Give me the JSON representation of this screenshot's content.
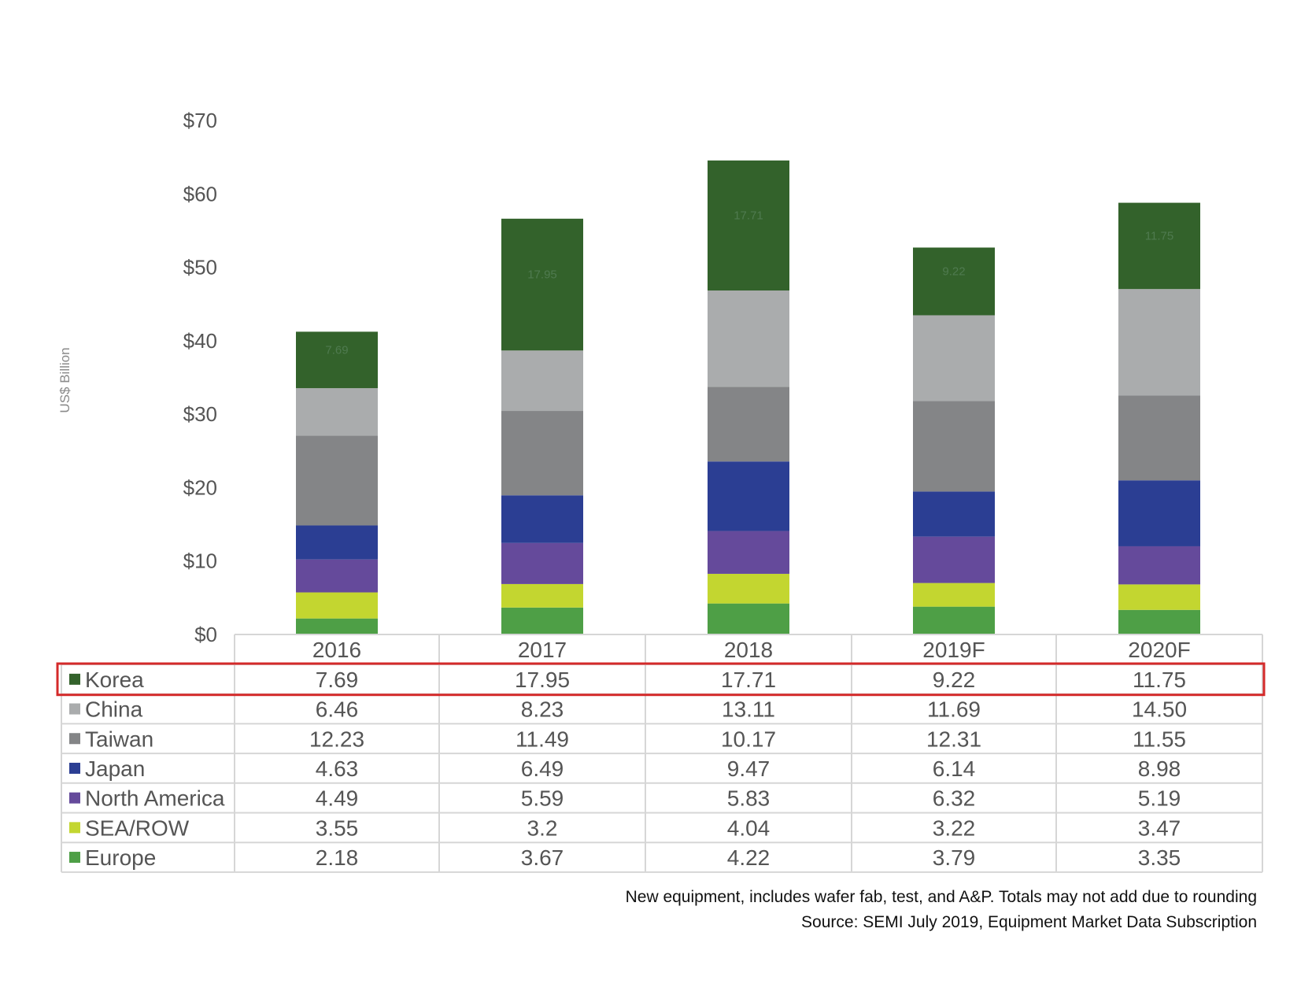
{
  "chart_data": {
    "type": "bar",
    "stacked": true,
    "categories": [
      "2016",
      "2017",
      "2018",
      "2019F",
      "2020F"
    ],
    "ylabel": "US$ Billion",
    "ylim": [
      0,
      70
    ],
    "yticks": [
      "$0",
      "$10",
      "$20",
      "$30",
      "$40",
      "$50",
      "$60",
      "$70"
    ],
    "grid": false,
    "series": [
      {
        "name": "Europe",
        "color": "#4e9f46",
        "values": [
          2.18,
          3.67,
          4.22,
          3.79,
          3.35
        ],
        "display": [
          "2.18",
          "3.67",
          "4.22",
          "3.79",
          "3.35"
        ]
      },
      {
        "name": "SEA/ROW",
        "color": "#c3d630",
        "values": [
          3.55,
          3.2,
          4.04,
          3.22,
          3.47
        ],
        "display": [
          "3.55",
          "3.2",
          "4.04",
          "3.22",
          "3.47"
        ]
      },
      {
        "name": "North America",
        "color": "#654a9b",
        "values": [
          4.49,
          5.59,
          5.83,
          6.32,
          5.19
        ],
        "display": [
          "4.49",
          "5.59",
          "5.83",
          "6.32",
          "5.19"
        ]
      },
      {
        "name": "Japan",
        "color": "#2b3e93",
        "values": [
          4.63,
          6.49,
          9.47,
          6.14,
          8.98
        ],
        "display": [
          "4.63",
          "6.49",
          "9.47",
          "6.14",
          "8.98"
        ]
      },
      {
        "name": "Taiwan",
        "color": "#848587",
        "values": [
          12.23,
          11.49,
          10.17,
          12.31,
          11.55
        ],
        "display": [
          "12.23",
          "11.49",
          "10.17",
          "12.31",
          "11.55"
        ]
      },
      {
        "name": "China",
        "color": "#aaacad",
        "values": [
          6.46,
          8.23,
          13.11,
          11.69,
          14.5
        ],
        "display": [
          "6.46",
          "8.23",
          "13.11",
          "11.69",
          "14.50"
        ]
      },
      {
        "name": "Korea",
        "color": "#33622b",
        "values": [
          7.69,
          17.95,
          17.71,
          9.22,
          11.75
        ],
        "display": [
          "7.69",
          "17.95",
          "17.71",
          "9.22",
          "11.75"
        ]
      }
    ],
    "table_row_order": [
      "Korea",
      "China",
      "Taiwan",
      "Japan",
      "North America",
      "SEA/ROW",
      "Europe"
    ],
    "labeled_series": "Korea",
    "highlighted_row": "Korea",
    "highlight_color": "#d42a2a",
    "notes": [
      "New equipment, includes wafer fab, test, and A&P. Totals may not add due to rounding",
      "Source: SEMI July 2019, Equipment Market Data Subscription"
    ]
  }
}
